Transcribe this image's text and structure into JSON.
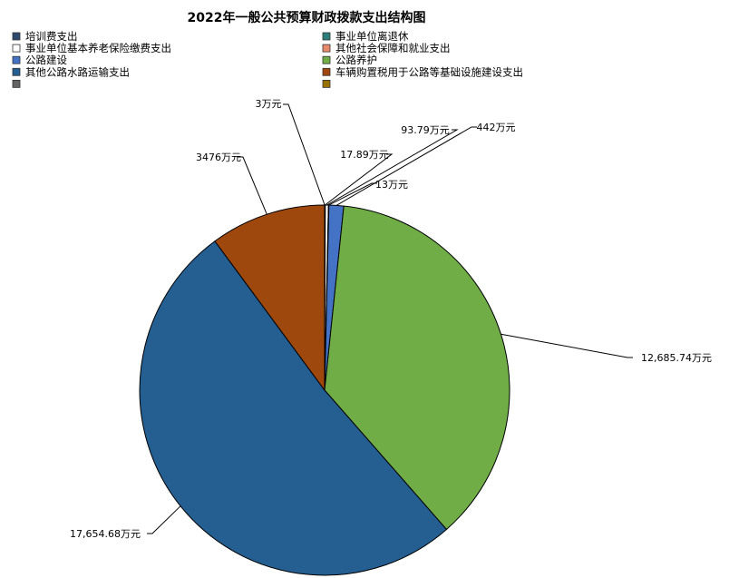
{
  "chart_data": {
    "type": "pie",
    "title": "2022年一般公共预算财政拨款支出结构图",
    "legend_position": "top",
    "series": [
      {
        "name": "培训费支出",
        "value": 3,
        "label": "3万元",
        "color": "#2e4a6b"
      },
      {
        "name": "事业单位离退休",
        "value": 17.89,
        "label": "17.89万元",
        "color": "#2a7f7a"
      },
      {
        "name": "事业单位基本养老保险缴费支出",
        "value": 93.79,
        "label": "93.79万元",
        "color": "#ffffff"
      },
      {
        "name": "其他社会保障和就业支出",
        "value": 13,
        "label": "13万元",
        "color": "#e98a6c"
      },
      {
        "name": "公路建设",
        "value": 442,
        "label": "442万元",
        "color": "#4472c4"
      },
      {
        "name": "公路养护",
        "value": 12685.74,
        "label": "12,685.74万元",
        "color": "#70ad47"
      },
      {
        "name": "其他公路水路运输支出",
        "value": 17654.68,
        "label": "17,654.68万元",
        "color": "#255e91"
      },
      {
        "name": "车辆购置税用于公路等基础设施建设支出",
        "value": 3476,
        "label": "3476万元",
        "color": "#9e480e"
      },
      {
        "name": "",
        "value": 0,
        "label": "",
        "color": "#636363"
      },
      {
        "name": "",
        "value": 0,
        "label": "",
        "color": "#997300"
      }
    ]
  }
}
